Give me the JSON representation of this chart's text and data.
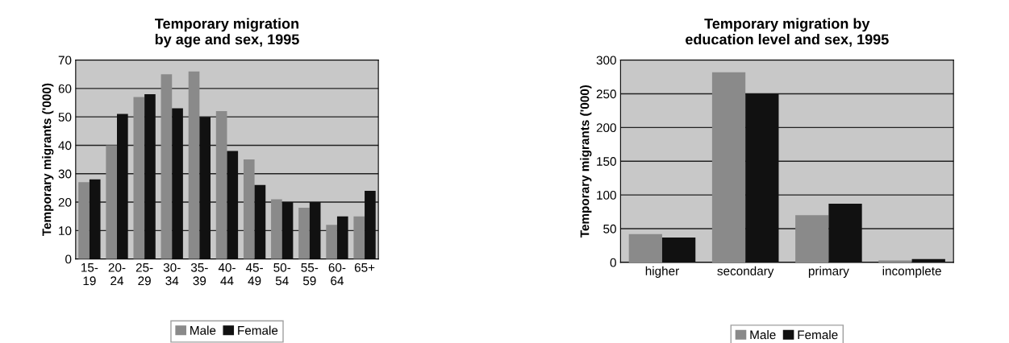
{
  "chart_data": [
    {
      "type": "bar",
      "title": "Temporary migration\nby age and sex, 1995",
      "ylabel": "Temporary migrants ('000)",
      "categories": [
        "15-\n19",
        "20-\n24",
        "25-\n29",
        "30-\n34",
        "35-\n39",
        "40-\n44",
        "45-\n49",
        "50-\n54",
        "55-\n59",
        "60-\n64",
        "65+"
      ],
      "series": [
        {
          "name": "Male",
          "color": "#8a8a8a",
          "values": [
            27,
            40,
            57,
            65,
            66,
            52,
            35,
            21,
            18,
            12,
            15
          ]
        },
        {
          "name": "Female",
          "color": "#111111",
          "values": [
            28,
            51,
            58,
            53,
            50,
            38,
            26,
            20,
            20,
            15,
            24
          ]
        }
      ],
      "ylim": [
        0,
        70
      ],
      "yticks": [
        0,
        10,
        20,
        30,
        40,
        50,
        60,
        70
      ],
      "grid": "y",
      "legend": "bottom"
    },
    {
      "type": "bar",
      "title": "Temporary migration by\neducation level and sex, 1995",
      "ylabel": "Temporary migrants ('000)",
      "categories": [
        "higher",
        "secondary",
        "primary",
        "incomplete"
      ],
      "series": [
        {
          "name": "Male",
          "color": "#8a8a8a",
          "values": [
            42,
            282,
            70,
            3
          ]
        },
        {
          "name": "Female",
          "color": "#111111",
          "values": [
            37,
            250,
            87,
            5
          ]
        }
      ],
      "ylim": [
        0,
        300
      ],
      "yticks": [
        0,
        50,
        100,
        150,
        200,
        250,
        300
      ],
      "grid": "y",
      "legend": "bottom"
    }
  ]
}
